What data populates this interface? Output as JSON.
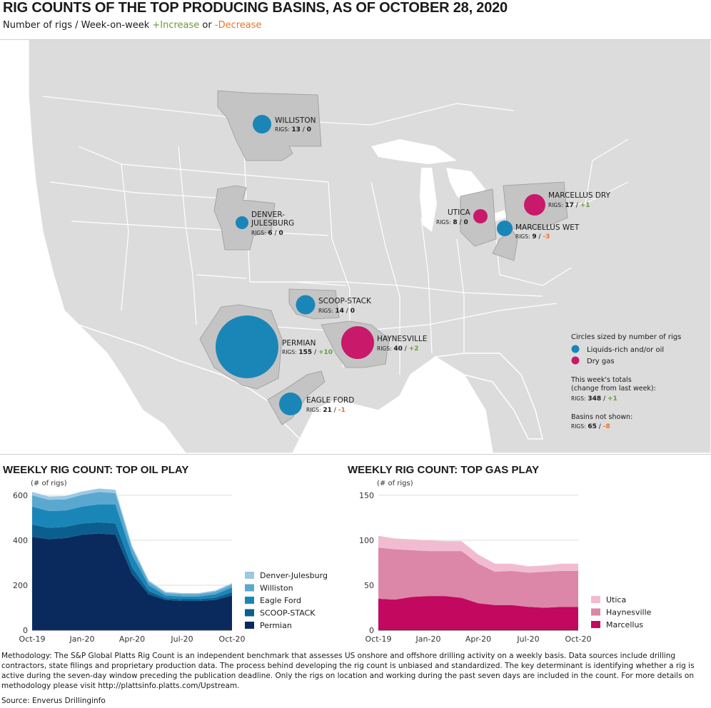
{
  "title": "RIG COUNTS OF THE TOP PRODUCING BASINS, AS OF OCTOBER 28, 2020",
  "subtitle": {
    "prefix": "Number of rigs / Week-on-week ",
    "increase": "+Increase",
    "or": " or ",
    "decrease": "-Decrease"
  },
  "colors": {
    "oil": "#1a86b8",
    "gas": "#c8196a",
    "increase": "#6a9a3a",
    "decrease": "#e8752a"
  },
  "basins": [
    {
      "name": "WILLISTON",
      "type": "oil",
      "rigs": "13",
      "change": "0",
      "dir": "none"
    },
    {
      "name": "DENVER-JULESBURG",
      "lines": [
        "DENVER-",
        "JULESBURG"
      ],
      "type": "oil",
      "rigs": "6",
      "change": "0",
      "dir": "none"
    },
    {
      "name": "SCOOP-STACK",
      "type": "oil",
      "rigs": "14",
      "change": "0",
      "dir": "none"
    },
    {
      "name": "PERMIAN",
      "type": "oil",
      "rigs": "155",
      "change": "+10",
      "dir": "inc"
    },
    {
      "name": "HAYNESVILLE",
      "type": "gas",
      "rigs": "40",
      "change": "+2",
      "dir": "inc"
    },
    {
      "name": "EAGLE FORD",
      "type": "oil",
      "rigs": "21",
      "change": "-1",
      "dir": "dec"
    },
    {
      "name": "UTICA",
      "type": "gas",
      "rigs": "8",
      "change": "0",
      "dir": "none"
    },
    {
      "name": "MARCELLUS DRY",
      "type": "gas",
      "rigs": "17",
      "change": "+1",
      "dir": "inc"
    },
    {
      "name": "MARCELLUS WET",
      "type": "oil",
      "rigs": "9",
      "change": "-3",
      "dir": "dec"
    }
  ],
  "rigs_label": "RIGS:",
  "legend": {
    "heading": "Circles sized by number of rigs",
    "oil": "Liquids-rich and/or oil",
    "gas": "Dry gas",
    "totals_l1": "This week's totals",
    "totals_l2": "(change from last week):",
    "totals_rigs": "348",
    "totals_change": "+1",
    "notshown": "Basins not shown:",
    "notshown_rigs": "65",
    "notshown_change": "-8"
  },
  "methodology": "Methodology: The S&P Global Platts Rig Count is an independent benchmark that assesses US onshore and offshore drilling activity on a weekly basis. Data sources include drilling contractors, state filings and proprietary production data. The process behind developing the rig count is unbiased and standardized. The key determinant is identifying whether a rig is active during the seven-day window preceding the publication deadline. Only the rigs on location and working during the past seven days are included in the count. For more details on methodology please visit http://plattsinfo.platts.com/Upstream.",
  "source": "Source: Enverus Drillinginfo",
  "chart_data": [
    {
      "type": "area",
      "title": "WEEKLY RIG COUNT: TOP OIL PLAY",
      "ylabel": "(# of rigs)",
      "ylim": [
        0,
        600
      ],
      "yticks": [
        0,
        200,
        400,
        600
      ],
      "xticks": [
        "Oct-19",
        "Jan-20",
        "Apr-20",
        "Jul-20",
        "Oct-20"
      ],
      "x": [
        "Oct-19",
        "Nov-19",
        "Dec-19",
        "Jan-20",
        "Feb-20",
        "Mar-20",
        "Apr-20",
        "May-20",
        "Jun-20",
        "Jul-20",
        "Aug-20",
        "Sep-20",
        "Oct-20"
      ],
      "stacked": true,
      "series": [
        {
          "name": "Permian",
          "color": "#0a2a5e",
          "values": [
            415,
            405,
            410,
            425,
            430,
            425,
            250,
            160,
            135,
            130,
            130,
            135,
            155
          ]
        },
        {
          "name": "SCOOP-STACK",
          "color": "#0b5f8e",
          "values": [
            55,
            50,
            50,
            50,
            50,
            50,
            30,
            15,
            8,
            8,
            8,
            10,
            14
          ]
        },
        {
          "name": "Eagle Ford",
          "color": "#1a86b8",
          "values": [
            80,
            75,
            72,
            75,
            80,
            85,
            55,
            25,
            12,
            12,
            12,
            15,
            21
          ]
        },
        {
          "name": "Williston",
          "color": "#5aa8d0",
          "values": [
            50,
            50,
            50,
            52,
            55,
            50,
            30,
            15,
            11,
            11,
            11,
            12,
            13
          ]
        },
        {
          "name": "Denver-Julesburg",
          "color": "#9cc8e2",
          "values": [
            15,
            15,
            15,
            15,
            15,
            15,
            10,
            7,
            5,
            4,
            4,
            5,
            6
          ]
        }
      ]
    },
    {
      "type": "area",
      "title": "WEEKLY RIG COUNT: TOP GAS PLAY",
      "ylabel": "(# of rigs)",
      "ylim": [
        0,
        150
      ],
      "yticks": [
        0,
        50,
        100,
        150
      ],
      "xticks": [
        "Oct-19",
        "Jan-20",
        "Apr-20",
        "Jul-20",
        "Oct-20"
      ],
      "x": [
        "Oct-19",
        "Nov-19",
        "Dec-19",
        "Jan-20",
        "Feb-20",
        "Mar-20",
        "Apr-20",
        "May-20",
        "Jun-20",
        "Jul-20",
        "Aug-20",
        "Sep-20",
        "Oct-20"
      ],
      "stacked": true,
      "series": [
        {
          "name": "Marcellus",
          "color": "#c2085f",
          "values": [
            35,
            34,
            37,
            38,
            38,
            36,
            30,
            28,
            28,
            26,
            25,
            26,
            26
          ]
        },
        {
          "name": "Haynesville",
          "color": "#dc86a8",
          "values": [
            57,
            56,
            52,
            50,
            50,
            52,
            44,
            37,
            38,
            38,
            40,
            40,
            40
          ]
        },
        {
          "name": "Utica",
          "color": "#f1bcd0",
          "values": [
            13,
            12,
            12,
            12,
            11,
            11,
            10,
            9,
            8,
            7,
            7,
            8,
            8
          ]
        }
      ]
    }
  ]
}
